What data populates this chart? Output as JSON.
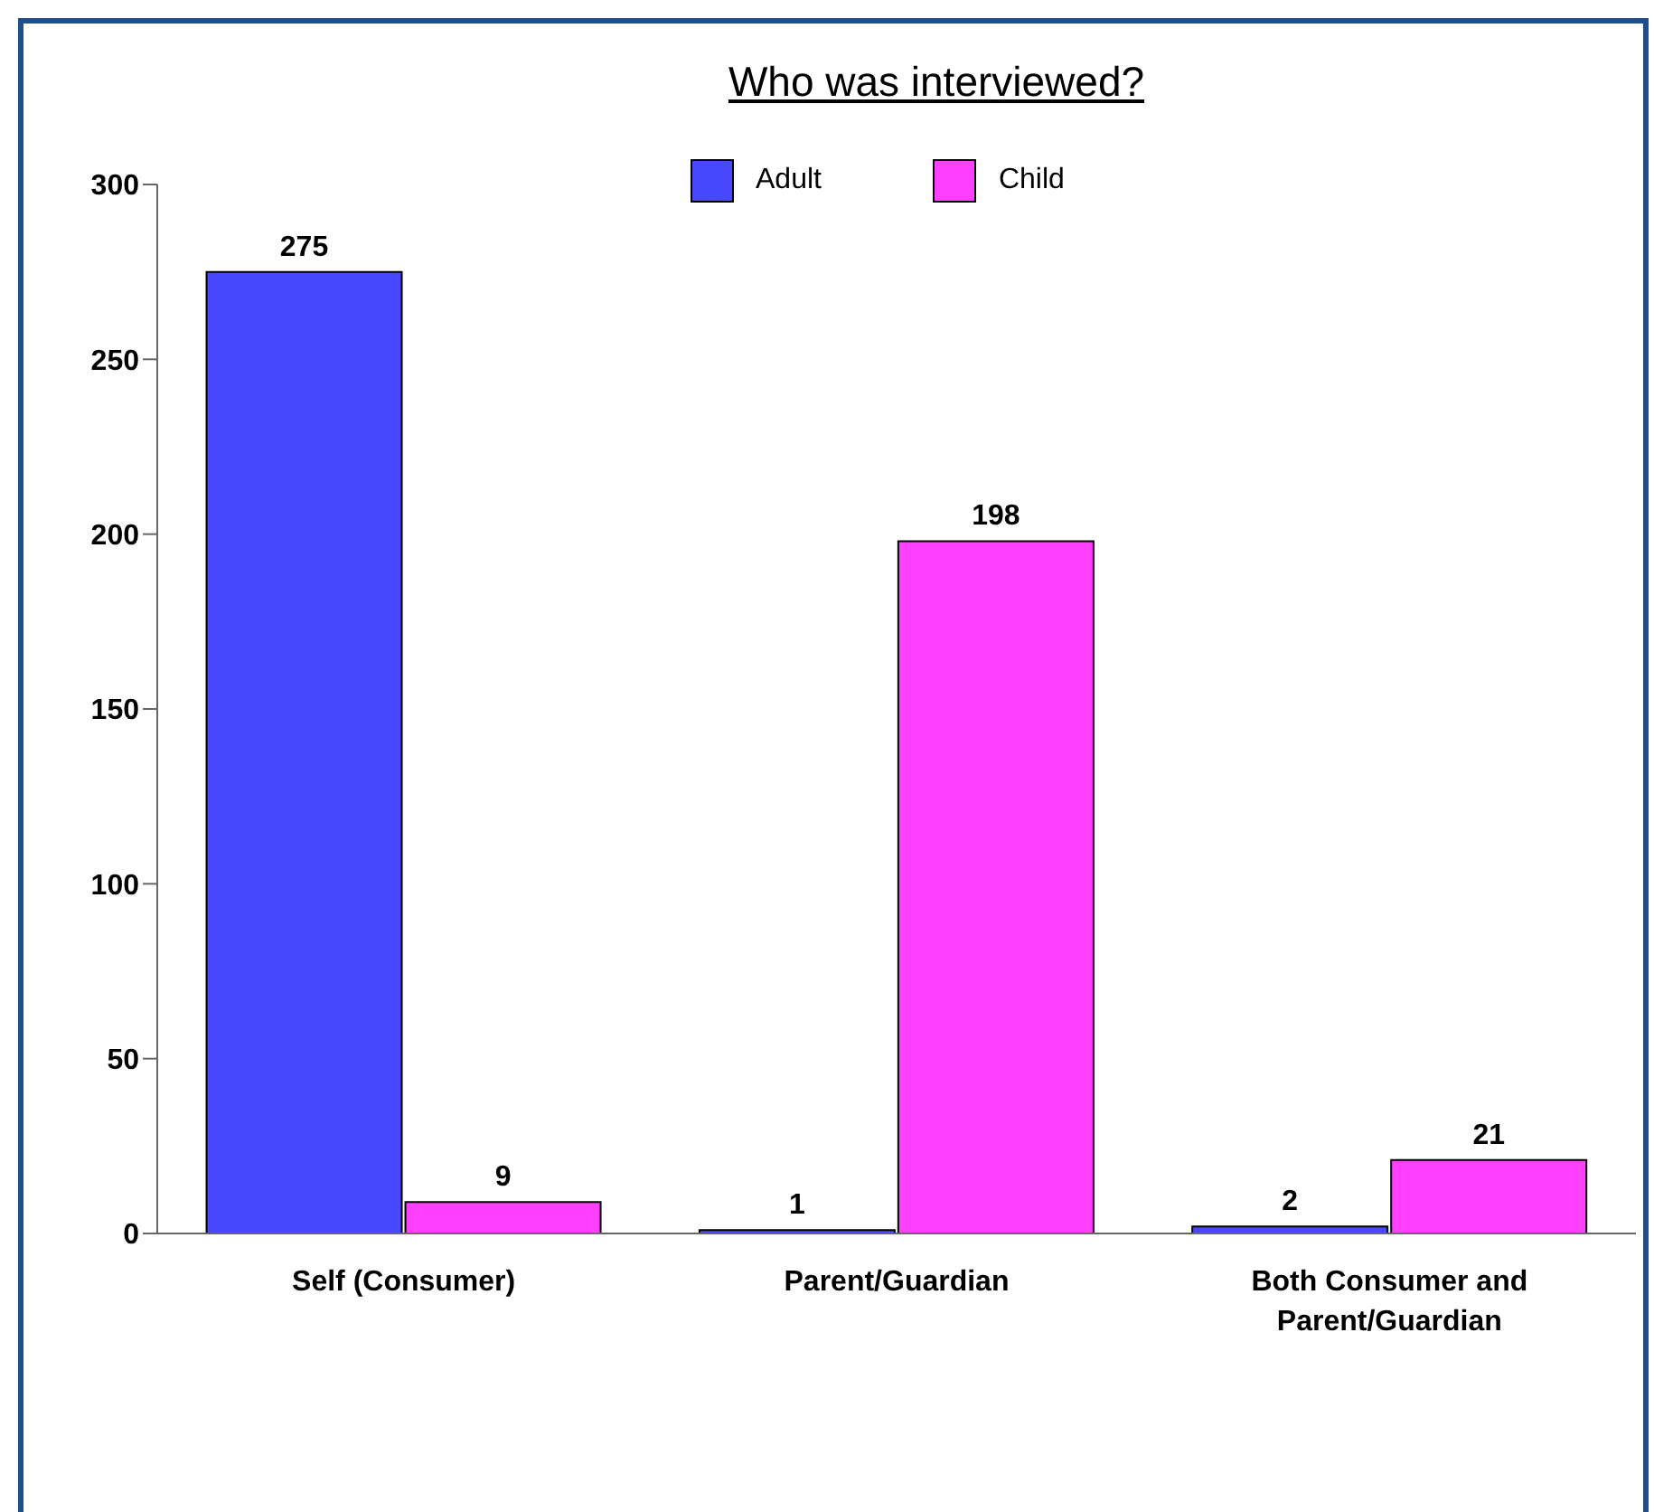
{
  "chart_data": {
    "type": "bar",
    "title": "Who was interviewed?",
    "categories": [
      "Self (Consumer)",
      "Parent/Guardian",
      "Both Consumer and Parent/Guardian"
    ],
    "series": [
      {
        "name": "Adult",
        "color": "#4848ff",
        "values": [
          275,
          1,
          2
        ]
      },
      {
        "name": "Child",
        "color": "#ff40ff",
        "values": [
          9,
          198,
          21
        ]
      }
    ],
    "ylim": [
      0,
      300
    ],
    "yticks": [
      0,
      50,
      100,
      150,
      200,
      250,
      300
    ],
    "grid": false,
    "legend": "top",
    "data_labels": true
  }
}
